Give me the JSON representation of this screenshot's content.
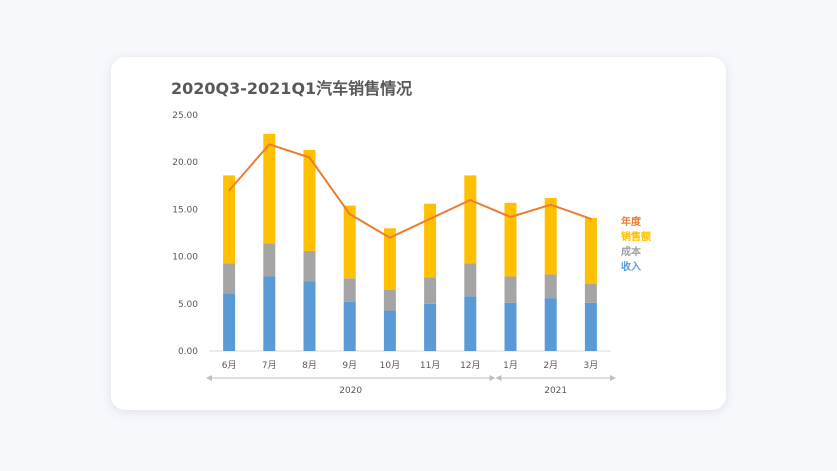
{
  "chart_data": {
    "type": "bar",
    "stacked": true,
    "title": "2020Q3-2021Q1汽车销售情况",
    "categories": [
      "6月",
      "7月",
      "8月",
      "9月",
      "10月",
      "11月",
      "12月",
      "1月",
      "2月",
      "3月"
    ],
    "groups": [
      {
        "label": "2020",
        "categories": [
          "6月",
          "7月",
          "8月",
          "9月",
          "10月",
          "11月",
          "12月"
        ]
      },
      {
        "label": "2021",
        "categories": [
          "1月",
          "2月",
          "3月"
        ]
      }
    ],
    "series": [
      {
        "name": "收入",
        "kind": "bar",
        "color": "#5b9bd5",
        "values": [
          6.1,
          7.9,
          7.4,
          5.2,
          4.3,
          5.0,
          5.8,
          5.1,
          5.6,
          5.1
        ]
      },
      {
        "name": "成本",
        "kind": "bar",
        "color": "#a5a5a5",
        "values": [
          3.2,
          3.5,
          3.2,
          2.5,
          2.2,
          2.8,
          3.5,
          2.8,
          2.5,
          2.0
        ]
      },
      {
        "name": "销售额",
        "kind": "bar",
        "color": "#ffc000",
        "values": [
          9.3,
          11.6,
          10.7,
          7.7,
          6.5,
          7.8,
          9.3,
          7.8,
          8.1,
          7.0
        ]
      },
      {
        "name": "年度",
        "kind": "line",
        "color": "#ed7d31",
        "values": [
          17.0,
          21.9,
          20.5,
          14.5,
          12.0,
          14.0,
          16.0,
          14.2,
          15.5,
          14.0
        ]
      }
    ],
    "ylim": [
      0,
      25
    ],
    "yticks": [
      "0.00",
      "5.00",
      "10.00",
      "15.00",
      "20.00",
      "25.00"
    ],
    "grid": false,
    "legend": "right"
  }
}
